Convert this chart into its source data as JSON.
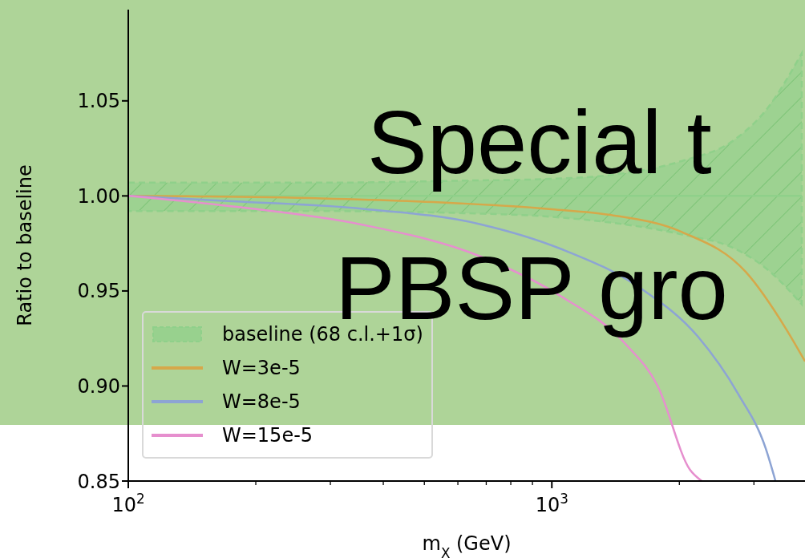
{
  "chart_data": {
    "type": "line",
    "xlabel": "m$_{X}$ (GeV)",
    "ylabel": "Ratio to baseline",
    "log": "x",
    "xlim": [
      100,
      3960
    ],
    "xticks": [
      {
        "value": 100,
        "label": "10$^{2}$"
      },
      {
        "value": 200,
        "label": null
      },
      {
        "value": 300,
        "label": null
      },
      {
        "value": 400,
        "label": null
      },
      {
        "value": 500,
        "label": null
      },
      {
        "value": 600,
        "label": null
      },
      {
        "value": 700,
        "label": null
      },
      {
        "value": 800,
        "label": null
      },
      {
        "value": 900,
        "label": null
      },
      {
        "value": 1000,
        "label": "10$^{3}$"
      },
      {
        "value": 2000,
        "label": null
      },
      {
        "value": 3000,
        "label": null
      }
    ],
    "ylim": [
      0.85,
      1.098
    ],
    "yticks": [
      0.85,
      {
        "value": 0.9,
        "label": "0.90"
      },
      0.95,
      {
        "value": 1.0,
        "label": "1.00"
      },
      1.05
    ],
    "legend": "bottom left",
    "grid": false,
    "series": [
      {
        "name": "baseline (68 c.l.+1σ)",
        "color": "#8fd08a",
        "line_style": "solid",
        "x": [
          100,
          300,
          600,
          1000,
          1374,
          2000,
          2717,
          3200,
          3890
        ],
        "values": [
          1.0,
          1.0,
          1.0,
          1.0,
          1.0,
          1.0,
          1.0,
          1.0,
          1.0
        ],
        "upper": [
          1.007,
          1.007,
          1.008,
          1.009,
          1.011,
          1.018,
          1.03,
          1.045,
          1.075
        ],
        "lower": [
          0.992,
          0.992,
          0.991,
          0.989,
          0.986,
          0.98,
          0.972,
          0.962,
          0.943
        ]
      },
      {
        "name": "W=3e-5",
        "color": "#d6a84a",
        "line_style": "solid",
        "x": [
          100,
          285,
          548,
          1000,
          1374,
          2027,
          2870,
          3573,
          3960
        ],
        "values": [
          1.0,
          0.9987,
          0.9966,
          0.993,
          0.99,
          0.981,
          0.96,
          0.93,
          0.913
        ]
      },
      {
        "name": "W=8e-5",
        "color": "#8da4d4",
        "line_style": "solid",
        "x": [
          100,
          184,
          354,
          681,
          1054,
          1630,
          2212,
          2750,
          3200,
          3373
        ],
        "values": [
          1.0,
          0.997,
          0.9933,
          0.985,
          0.972,
          0.951,
          0.926,
          0.896,
          0.867,
          0.85
        ]
      },
      {
        "name": "W=15e-5",
        "color": "#e68fce",
        "line_style": "solid",
        "x": [
          100,
          184,
          354,
          681,
          1054,
          1494,
          1778,
          2118,
          2260
        ],
        "values": [
          1.0,
          0.994,
          0.985,
          0.968,
          0.947,
          0.922,
          0.9,
          0.856,
          0.85
        ]
      }
    ],
    "annotations": [
      "Special t",
      "PBSP gro"
    ]
  }
}
